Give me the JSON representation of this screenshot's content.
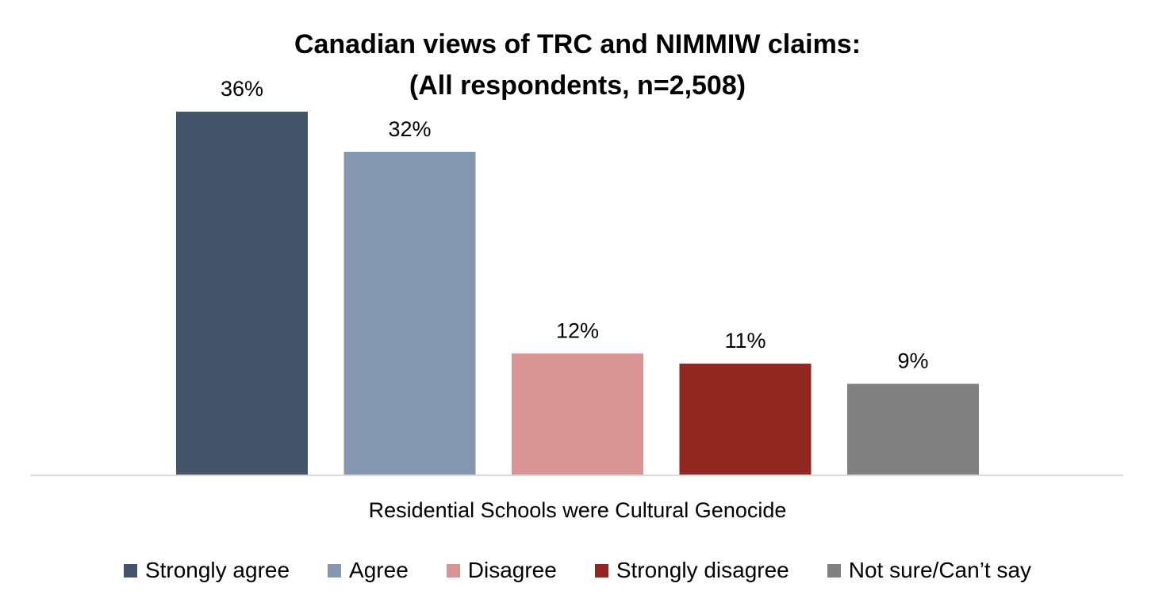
{
  "chart_data": {
    "type": "bar",
    "title": "Canadian views of TRC and NIMMIW claims:",
    "subtitle": "(All respondents, n=2,508)",
    "xlabel": "Residential Schools were Cultural Genocide",
    "ylabel": "",
    "categories": [
      "Residential Schools were Cultural Genocide"
    ],
    "series": [
      {
        "name": "Strongly agree",
        "values": [
          36
        ],
        "color": "#44546a",
        "label": "36%"
      },
      {
        "name": "Agree",
        "values": [
          32
        ],
        "color": "#8497b0",
        "label": "32%"
      },
      {
        "name": "Disagree",
        "values": [
          12
        ],
        "color": "#d99594",
        "label": "12%"
      },
      {
        "name": "Strongly disagree",
        "values": [
          11
        ],
        "color": "#922722",
        "label": "11%"
      },
      {
        "name": "Not sure/Can’t say",
        "values": [
          9
        ],
        "color": "#808080",
        "label": "9%"
      }
    ],
    "ylim": [
      0,
      40
    ],
    "grid": false,
    "legend_position": "bottom",
    "value_unit": "%"
  }
}
